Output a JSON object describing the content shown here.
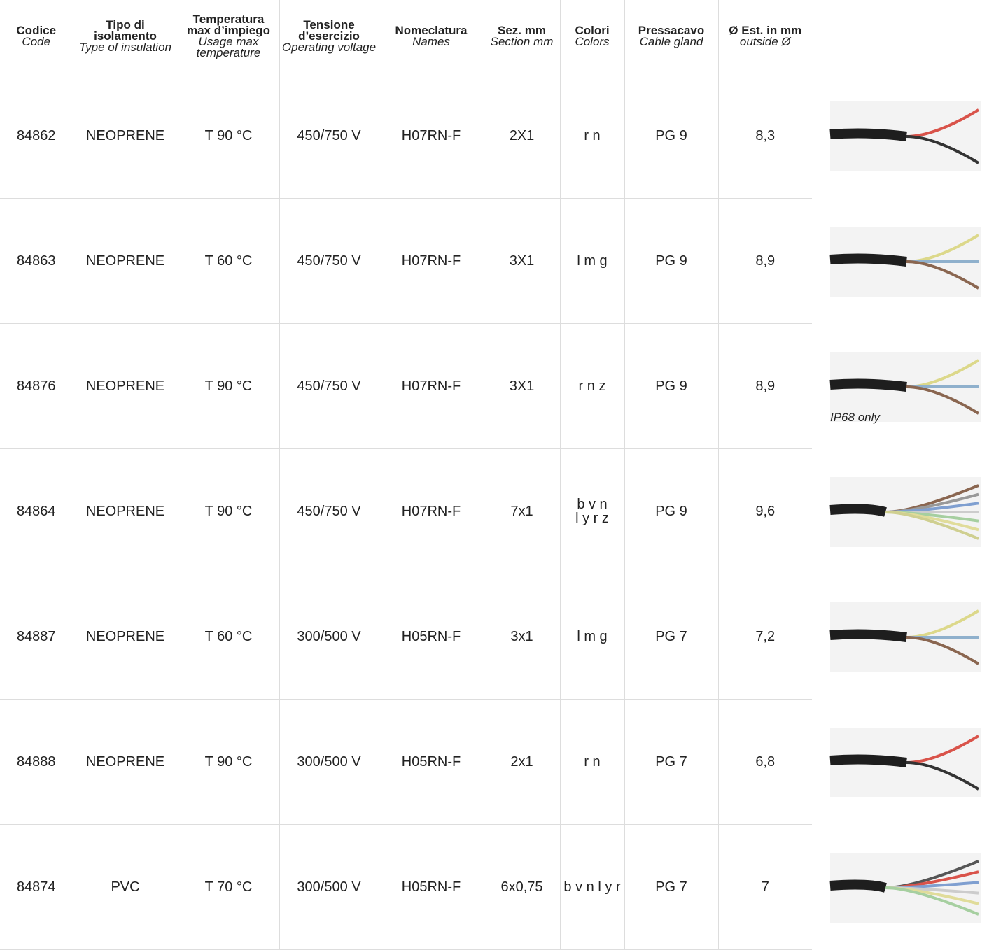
{
  "table": {
    "columns": [
      {
        "it": "Codice",
        "en": "Code"
      },
      {
        "it": "Tipo di isolamento",
        "en": "Type of insulation"
      },
      {
        "it": "Temperatura max d’impiego",
        "en": "Usage max temperature"
      },
      {
        "it": "Tensione d’esercizio",
        "en": "Operating voltage"
      },
      {
        "it": "Nomeclatura",
        "en": "Names"
      },
      {
        "it": "Sez. mm",
        "en": "Section mm"
      },
      {
        "it": "Colori",
        "en": "Colors"
      },
      {
        "it": "Pressacavo",
        "en": "Cable gland"
      },
      {
        "it": "Ø Est. in mm",
        "en": "outside Ø"
      }
    ],
    "rows": [
      [
        "84862",
        "NEOPRENE",
        "T 90 °C",
        "450/750 V",
        "H07RN-F",
        "2X1",
        "r n",
        "PG 9",
        "8,3"
      ],
      [
        "84863",
        "NEOPRENE",
        "T 60 °C",
        "450/750 V",
        "H07RN-F",
        "3X1",
        "l m g",
        "PG 9",
        "8,9"
      ],
      [
        "84876",
        "NEOPRENE",
        "T 90 °C",
        "450/750 V",
        "H07RN-F",
        "3X1",
        "r n z",
        "PG 9",
        "8,9"
      ],
      [
        "84864",
        "NEOPRENE",
        "T 90 °C",
        "450/750 V",
        "H07RN-F",
        "7x1",
        "b v n\nl y r z",
        "PG 9",
        "9,6"
      ],
      [
        "84887",
        "NEOPRENE",
        "T 60 °C",
        "300/500 V",
        "H05RN-F",
        "3x1",
        "l m g",
        "PG 7",
        "7,2"
      ],
      [
        "84888",
        "NEOPRENE",
        "T 90 °C",
        "300/500 V",
        "H05RN-F",
        "2x1",
        "r n",
        "PG 7",
        "6,8"
      ],
      [
        "84874",
        "PVC",
        "T 70 °C",
        "300/500 V",
        "H05RN-F",
        "6x0,75",
        "b v n l y r",
        "PG 7",
        "7"
      ]
    ]
  },
  "note": "IP68 only"
}
